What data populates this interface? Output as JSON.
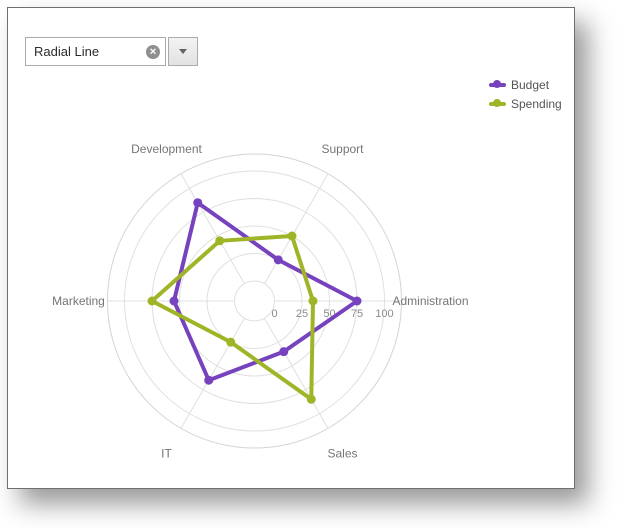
{
  "combo": {
    "value": "Radial Line"
  },
  "icons": {
    "clear": "✕",
    "dropdown": "triangle-down"
  },
  "chart_data": {
    "type": "line",
    "subtype": "radar-radial-line",
    "title": "",
    "categories": [
      "Administration",
      "Support",
      "Development",
      "Marketing",
      "IT",
      "Sales"
    ],
    "start_angle_deg": 0,
    "direction": "counterclockwise",
    "value_axis": {
      "min": 0,
      "max": 100,
      "ticks": [
        0,
        25,
        50,
        75,
        100
      ],
      "tick_labels": [
        "0",
        "25",
        "50",
        "75",
        "100"
      ]
    },
    "series": [
      {
        "name": "Budget",
        "color": "#7742BD",
        "values": [
          75,
          25,
          85,
          55,
          65,
          35
        ]
      },
      {
        "name": "Spending",
        "color": "#A0B428",
        "values": [
          35,
          50,
          45,
          75,
          25,
          85
        ]
      }
    ],
    "legend_position": "top-right",
    "grid": true
  },
  "colors": {
    "grid": "#E0E0E0",
    "outer_ring": "#D4D4D4",
    "category_label": "#757575",
    "tick_label": "#8A8A8A",
    "legend_text": "#555555"
  }
}
